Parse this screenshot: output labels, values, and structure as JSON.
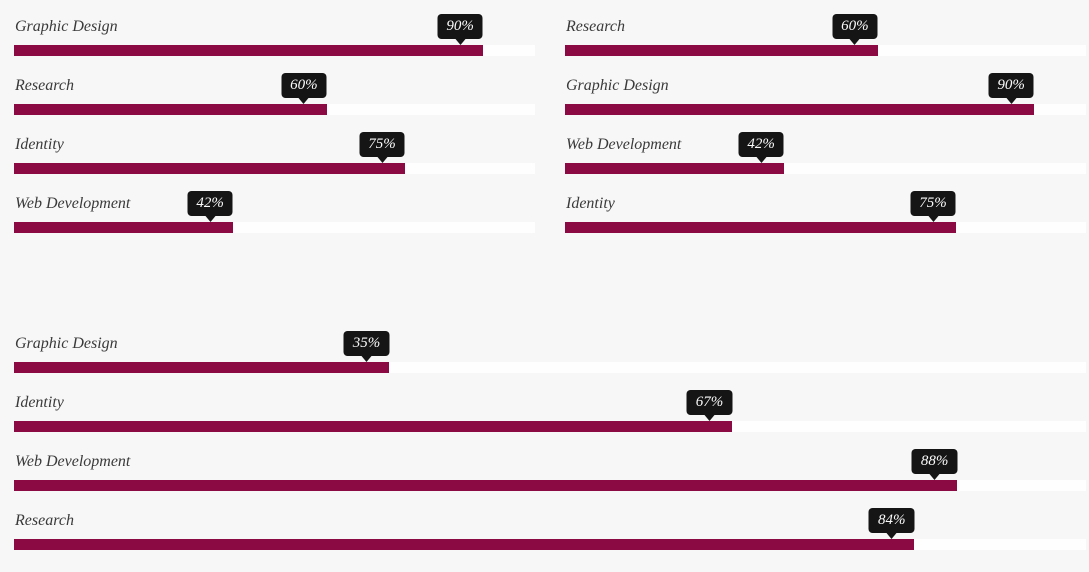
{
  "colors": {
    "page_bg": "#f7f7f7",
    "bar_fill": "#8c0a43",
    "bar_track": "#fefefe",
    "badge_bg": "#151515",
    "badge_text": "#fafafa",
    "label_text": "#3a3a3a"
  },
  "groups": [
    {
      "position": "top-left",
      "skills": [
        {
          "label": "Graphic Design",
          "percent": 90,
          "badge": "90%"
        },
        {
          "label": "Research",
          "percent": 60,
          "badge": "60%"
        },
        {
          "label": "Identity",
          "percent": 75,
          "badge": "75%"
        },
        {
          "label": "Web Development",
          "percent": 42,
          "badge": "42%"
        }
      ]
    },
    {
      "position": "top-right",
      "skills": [
        {
          "label": "Research",
          "percent": 60,
          "badge": "60%"
        },
        {
          "label": "Graphic Design",
          "percent": 90,
          "badge": "90%"
        },
        {
          "label": "Web Development",
          "percent": 42,
          "badge": "42%"
        },
        {
          "label": "Identity",
          "percent": 75,
          "badge": "75%"
        }
      ]
    },
    {
      "position": "bottom",
      "skills": [
        {
          "label": "Graphic Design",
          "percent": 35,
          "badge": "35%"
        },
        {
          "label": "Identity",
          "percent": 67,
          "badge": "67%"
        },
        {
          "label": "Web Development",
          "percent": 88,
          "badge": "88%"
        },
        {
          "label": "Research",
          "percent": 84,
          "badge": "84%"
        }
      ]
    }
  ],
  "chart_data": [
    {
      "type": "bar",
      "orientation": "horizontal",
      "position": "top-left",
      "categories": [
        "Graphic Design",
        "Research",
        "Identity",
        "Web Development"
      ],
      "values": [
        90,
        60,
        75,
        42
      ],
      "unit": "%",
      "xlim": [
        0,
        100
      ],
      "title": "",
      "xlabel": "",
      "ylabel": "",
      "grid": false,
      "legend": false,
      "data_labels": [
        "90%",
        "60%",
        "75%",
        "42%"
      ]
    },
    {
      "type": "bar",
      "orientation": "horizontal",
      "position": "top-right",
      "categories": [
        "Research",
        "Graphic Design",
        "Web Development",
        "Identity"
      ],
      "values": [
        60,
        90,
        42,
        75
      ],
      "unit": "%",
      "xlim": [
        0,
        100
      ],
      "title": "",
      "xlabel": "",
      "ylabel": "",
      "grid": false,
      "legend": false,
      "data_labels": [
        "60%",
        "90%",
        "42%",
        "75%"
      ]
    },
    {
      "type": "bar",
      "orientation": "horizontal",
      "position": "bottom",
      "categories": [
        "Graphic Design",
        "Identity",
        "Web Development",
        "Research"
      ],
      "values": [
        35,
        67,
        88,
        84
      ],
      "unit": "%",
      "xlim": [
        0,
        100
      ],
      "title": "",
      "xlabel": "",
      "ylabel": "",
      "grid": false,
      "legend": false,
      "data_labels": [
        "35%",
        "67%",
        "88%",
        "84%"
      ]
    }
  ]
}
